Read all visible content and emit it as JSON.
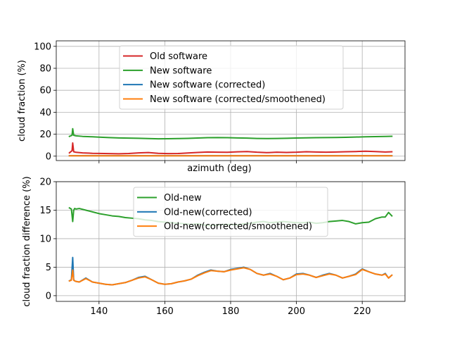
{
  "chart_data": [
    {
      "type": "line",
      "title": "",
      "xlabel": "azimuth (deg)",
      "ylabel": "cloud fraction (%)",
      "xlim": [
        127,
        233
      ],
      "ylim": [
        -4,
        105
      ],
      "yticks": [
        0,
        20,
        40,
        60,
        80,
        100
      ],
      "xticks": [
        140,
        160,
        180,
        200,
        220
      ],
      "show_xticklabels": false,
      "grid": true,
      "legend_position": "upper-center",
      "series": [
        {
          "name": "Old software",
          "color": "#d62728",
          "x": [
            131,
            131.8,
            132,
            132.3,
            133,
            135,
            138,
            140,
            143,
            146,
            149,
            152,
            155,
            158,
            161,
            164,
            167,
            170,
            173,
            176,
            179,
            182,
            185,
            188,
            191,
            194,
            197,
            200,
            203,
            206,
            209,
            212,
            215,
            218,
            221,
            224,
            227,
            229
          ],
          "y": [
            3,
            5,
            12,
            4,
            3.5,
            3,
            2.6,
            2.5,
            2.3,
            2.2,
            2.4,
            3,
            3.3,
            2.6,
            2.3,
            2.4,
            2.9,
            3.4,
            3.8,
            3.6,
            3.5,
            3.9,
            4.2,
            3.6,
            3.2,
            3.6,
            3.4,
            3.6,
            4,
            3.8,
            3.6,
            3.8,
            4,
            4.2,
            4.5,
            4.2,
            3.8,
            4
          ]
        },
        {
          "name": "New software",
          "color": "#2ca02c",
          "x": [
            131,
            131.8,
            132,
            132.3,
            133,
            135,
            138,
            140,
            143,
            146,
            149,
            152,
            155,
            158,
            161,
            164,
            167,
            170,
            173,
            176,
            179,
            182,
            185,
            188,
            191,
            194,
            197,
            200,
            203,
            206,
            209,
            212,
            215,
            218,
            221,
            224,
            227,
            229
          ],
          "y": [
            18,
            19,
            25,
            19,
            18.5,
            18,
            17.6,
            17.3,
            16.9,
            16.6,
            16.4,
            16.3,
            16,
            15.8,
            15.9,
            16,
            16.2,
            16.5,
            16.8,
            16.9,
            16.8,
            16.6,
            16.4,
            16.1,
            16,
            16.1,
            16.3,
            16.5,
            16.7,
            16.8,
            16.9,
            17,
            17.2,
            17.4,
            17.6,
            17.8,
            18,
            18.1
          ]
        },
        {
          "name": "New software (corrected)",
          "color": "#1f77b4",
          "x": [
            131,
            229
          ],
          "y": [
            0.4,
            0.4
          ]
        },
        {
          "name": "New software (corrected/smoothened)",
          "color": "#ff7f0e",
          "x": [
            131,
            229
          ],
          "y": [
            0.3,
            0.3
          ]
        }
      ]
    },
    {
      "type": "line",
      "title": "",
      "xlabel": "",
      "ylabel": "cloud fraction difference (%)",
      "xlim": [
        127,
        233
      ],
      "ylim": [
        -1,
        20
      ],
      "yticks": [
        0,
        5,
        10,
        15,
        20
      ],
      "xticks": [
        140,
        160,
        180,
        200,
        220
      ],
      "xticklabels": [
        "140",
        "160",
        "180",
        "200",
        "220"
      ],
      "grid": true,
      "legend_position": "upper-center",
      "series": [
        {
          "name": "Old-new",
          "color": "#2ca02c",
          "x": [
            131,
            131.6,
            132,
            132.3,
            132.6,
            133,
            134,
            136,
            138,
            140,
            142,
            144,
            146,
            148,
            150,
            152,
            154,
            156,
            158,
            160,
            162,
            164,
            166,
            168,
            170,
            172,
            174,
            176,
            178,
            180,
            182,
            184,
            186,
            188,
            190,
            192,
            194,
            196,
            198,
            200,
            202,
            204,
            206,
            208,
            210,
            212,
            214,
            216,
            218,
            220,
            222,
            224,
            226,
            227,
            228,
            229
          ],
          "y": [
            15.4,
            15.2,
            13.0,
            15.0,
            15.3,
            15.2,
            15.3,
            15.0,
            14.7,
            14.4,
            14.2,
            14.0,
            13.9,
            13.7,
            13.6,
            13.5,
            13.3,
            13.2,
            13.0,
            12.9,
            12.8,
            12.7,
            12.6,
            12.5,
            12.6,
            12.4,
            12.3,
            12.4,
            12.5,
            12.5,
            12.4,
            12.6,
            12.7,
            12.9,
            13.0,
            12.8,
            12.9,
            13.0,
            12.9,
            12.8,
            12.8,
            12.9,
            12.7,
            12.8,
            13.0,
            13.1,
            13.2,
            13.0,
            12.6,
            12.8,
            12.9,
            13.5,
            13.8,
            13.8,
            14.6,
            14.0
          ]
        },
        {
          "name": "Old-new(corrected)",
          "color": "#1f77b4",
          "x": [
            131,
            131.6,
            132,
            132.3,
            132.6,
            133,
            134,
            136,
            138,
            140,
            142,
            144,
            146,
            148,
            150,
            152,
            154,
            156,
            158,
            160,
            162,
            164,
            166,
            168,
            170,
            172,
            174,
            176,
            178,
            180,
            182,
            184,
            186,
            188,
            190,
            192,
            194,
            196,
            198,
            200,
            202,
            204,
            206,
            208,
            210,
            212,
            214,
            216,
            218,
            220,
            222,
            224,
            226,
            227,
            228,
            229
          ],
          "y": [
            2.6,
            2.8,
            6.7,
            2.8,
            2.6,
            2.5,
            2.4,
            3.1,
            2.4,
            2.2,
            2.0,
            1.9,
            2.1,
            2.3,
            2.7,
            3.2,
            3.4,
            2.8,
            2.2,
            2.0,
            2.1,
            2.4,
            2.6,
            2.9,
            3.6,
            4.1,
            4.5,
            4.3,
            4.2,
            4.6,
            4.8,
            5.0,
            4.6,
            3.9,
            3.6,
            3.9,
            3.4,
            2.8,
            3.1,
            3.8,
            3.9,
            3.6,
            3.2,
            3.6,
            3.9,
            3.6,
            3.1,
            3.4,
            3.8,
            4.7,
            4.2,
            3.8,
            3.6,
            3.9,
            3.1,
            3.6
          ]
        },
        {
          "name": "Old-new(corrected/smoothened)",
          "color": "#ff7f0e",
          "x": [
            131,
            131.6,
            132,
            132.3,
            132.6,
            133,
            134,
            136,
            138,
            140,
            142,
            144,
            146,
            148,
            150,
            152,
            154,
            156,
            158,
            160,
            162,
            164,
            166,
            168,
            170,
            172,
            174,
            176,
            178,
            180,
            182,
            184,
            186,
            188,
            190,
            192,
            194,
            196,
            198,
            200,
            202,
            204,
            206,
            208,
            210,
            212,
            214,
            216,
            218,
            220,
            222,
            224,
            226,
            227,
            228,
            229
          ],
          "y": [
            2.6,
            2.7,
            4.5,
            2.7,
            2.6,
            2.5,
            2.4,
            3.0,
            2.4,
            2.2,
            2.0,
            1.9,
            2.1,
            2.3,
            2.7,
            3.1,
            3.3,
            2.8,
            2.2,
            2.0,
            2.1,
            2.4,
            2.6,
            2.9,
            3.5,
            4.0,
            4.4,
            4.3,
            4.2,
            4.5,
            4.7,
            4.9,
            4.6,
            3.9,
            3.6,
            3.8,
            3.4,
            2.8,
            3.1,
            3.7,
            3.8,
            3.6,
            3.2,
            3.5,
            3.8,
            3.6,
            3.1,
            3.4,
            3.7,
            4.6,
            4.2,
            3.8,
            3.6,
            3.8,
            3.1,
            3.6
          ]
        }
      ]
    }
  ]
}
